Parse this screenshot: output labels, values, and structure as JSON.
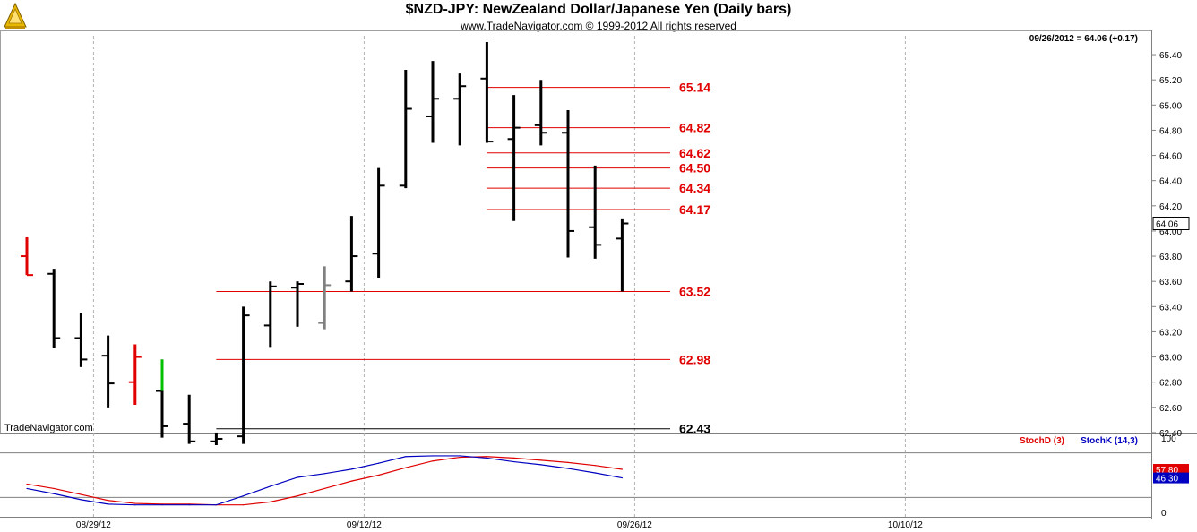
{
  "header": {
    "title": "$NZD-JPY:  NewZealand Dollar/Japanese Yen  (Daily bars)",
    "subtitle": "www.TradeNavigator.com © 1999-2012 All rights reserved",
    "quote": "09/26/2012 = 64.06 (+0.17)",
    "watermark": "TradeNavigator.com"
  },
  "colors": {
    "bar_default": "#000000",
    "bar_red": "#e00000",
    "bar_green": "#00c000",
    "bar_gray": "#808080",
    "level_red": "#e00000",
    "level_black": "#000000",
    "stoch_d": "#e00000",
    "stoch_k": "#0000c0"
  },
  "chart_data": [
    {
      "type": "ohlc",
      "ylim": [
        62.3,
        65.5
      ],
      "yticks": [
        62.4,
        62.6,
        62.8,
        63.0,
        63.2,
        63.4,
        63.6,
        63.8,
        64.0,
        64.2,
        64.4,
        64.6,
        64.8,
        65.0,
        65.2,
        65.4
      ],
      "ytick_labels": [
        "62.40",
        "62.60",
        "62.80",
        "63.00",
        "63.20",
        "63.40",
        "63.60",
        "63.80",
        "64.00",
        "64.20",
        "64.40",
        "64.60",
        "64.80",
        "65.00",
        "65.20",
        "65.40"
      ],
      "x_labels": [
        {
          "index": 2,
          "label": "08/29/12"
        },
        {
          "index": 12,
          "label": "09/12/12"
        },
        {
          "index": 22,
          "label": "09/26/12"
        },
        {
          "index": 32,
          "label": "10/10/12"
        }
      ],
      "last_price_label": "64.06",
      "last_price": 64.06,
      "bars": [
        {
          "index": 0,
          "open": 63.8,
          "high": 63.95,
          "low": 63.65,
          "close": 63.65,
          "color": "red"
        },
        {
          "index": 1,
          "open": 63.66,
          "high": 63.7,
          "low": 63.07,
          "close": 63.15
        },
        {
          "index": 2,
          "open": 63.15,
          "high": 63.35,
          "low": 62.92,
          "close": 62.98
        },
        {
          "index": 3,
          "open": 63.01,
          "high": 63.17,
          "low": 62.6,
          "close": 62.79
        },
        {
          "index": 4,
          "open": 62.8,
          "high": 63.1,
          "low": 62.62,
          "close": 63.0,
          "color": "red"
        },
        {
          "index": 5,
          "open": 62.73,
          "high": 62.98,
          "low": 62.36,
          "close": 62.45,
          "color": "green_body"
        },
        {
          "index": 6,
          "open": 62.47,
          "high": 62.7,
          "low": 62.31,
          "close": 62.33
        },
        {
          "index": 7,
          "open": 62.33,
          "high": 62.4,
          "low": 62.3,
          "close": 62.35
        },
        {
          "index": 8,
          "open": 62.37,
          "high": 63.4,
          "low": 62.31,
          "close": 63.33
        },
        {
          "index": 9,
          "open": 63.25,
          "high": 63.6,
          "low": 63.08,
          "close": 63.56
        },
        {
          "index": 10,
          "open": 63.55,
          "high": 63.6,
          "low": 63.24,
          "close": 63.58
        },
        {
          "index": 11,
          "open": 63.27,
          "high": 63.72,
          "low": 63.22,
          "close": 63.57,
          "color": "gray"
        },
        {
          "index": 12,
          "open": 63.6,
          "high": 64.12,
          "low": 63.52,
          "close": 63.8
        },
        {
          "index": 13,
          "open": 63.82,
          "high": 64.5,
          "low": 63.63,
          "close": 64.36
        },
        {
          "index": 14,
          "open": 64.36,
          "high": 65.28,
          "low": 64.34,
          "close": 64.97
        },
        {
          "index": 15,
          "open": 64.91,
          "high": 65.35,
          "low": 64.7,
          "close": 65.05
        },
        {
          "index": 16,
          "open": 65.05,
          "high": 65.25,
          "low": 64.68,
          "close": 65.15
        },
        {
          "index": 17,
          "open": 65.21,
          "high": 65.5,
          "low": 64.7,
          "close": 64.71
        },
        {
          "index": 18,
          "open": 64.73,
          "high": 65.08,
          "low": 64.08,
          "close": 64.82
        },
        {
          "index": 19,
          "open": 64.84,
          "high": 65.2,
          "low": 64.68,
          "close": 64.78
        },
        {
          "index": 20,
          "open": 64.78,
          "high": 64.96,
          "low": 63.79,
          "close": 64.0
        },
        {
          "index": 21,
          "open": 64.03,
          "high": 64.52,
          "low": 63.78,
          "close": 63.89
        },
        {
          "index": 22,
          "open": 63.94,
          "high": 64.1,
          "low": 63.52,
          "close": 64.06
        }
      ],
      "levels": [
        {
          "value": 65.14,
          "label": "65.14",
          "color": "red",
          "from_index": 17
        },
        {
          "value": 64.82,
          "label": "64.82",
          "color": "red",
          "from_index": 17
        },
        {
          "value": 64.62,
          "label": "64.62",
          "color": "red",
          "from_index": 17
        },
        {
          "value": 64.5,
          "label": "64.50",
          "color": "red",
          "from_index": 17
        },
        {
          "value": 64.34,
          "label": "64.34",
          "color": "red",
          "from_index": 17
        },
        {
          "value": 64.17,
          "label": "64.17",
          "color": "red",
          "from_index": 17
        },
        {
          "value": 63.52,
          "label": "63.52",
          "color": "red",
          "from_index": 7
        },
        {
          "value": 62.98,
          "label": "62.98",
          "color": "red",
          "from_index": 7
        },
        {
          "value": 62.43,
          "label": "62.43",
          "color": "black",
          "from_index": 7
        }
      ]
    },
    {
      "type": "line",
      "ylim": [
        0,
        100
      ],
      "yticks": [
        0,
        100
      ],
      "ytick_labels": [
        "0",
        "100"
      ],
      "ref_lines": [
        80,
        20
      ],
      "legend": [
        "StochD (3)",
        "StochK (14,3)"
      ],
      "series": [
        {
          "name": "StochD (3)",
          "color": "red",
          "last_label": "57.80",
          "x": [
            0,
            1,
            2,
            3,
            4,
            5,
            6,
            7,
            8,
            9,
            10,
            11,
            12,
            13,
            14,
            15,
            16,
            17,
            18,
            19,
            20,
            21,
            22
          ],
          "values": [
            38,
            32,
            24,
            16,
            12,
            11,
            11,
            10,
            10,
            14,
            22,
            32,
            42,
            50,
            60,
            69,
            74,
            75,
            73,
            70,
            67,
            63,
            57.8
          ]
        },
        {
          "name": "StochK (14,3)",
          "color": "blue",
          "last_label": "46.30",
          "x": [
            0,
            1,
            2,
            3,
            4,
            5,
            6,
            7,
            8,
            9,
            10,
            11,
            12,
            13,
            14,
            15,
            16,
            17,
            18,
            19,
            20,
            21,
            22
          ],
          "values": [
            32,
            25,
            17,
            11,
            10,
            10,
            10,
            10,
            22,
            35,
            47,
            52,
            58,
            66,
            75,
            76,
            76,
            73,
            68,
            64,
            59,
            53,
            46.3
          ]
        }
      ]
    }
  ]
}
